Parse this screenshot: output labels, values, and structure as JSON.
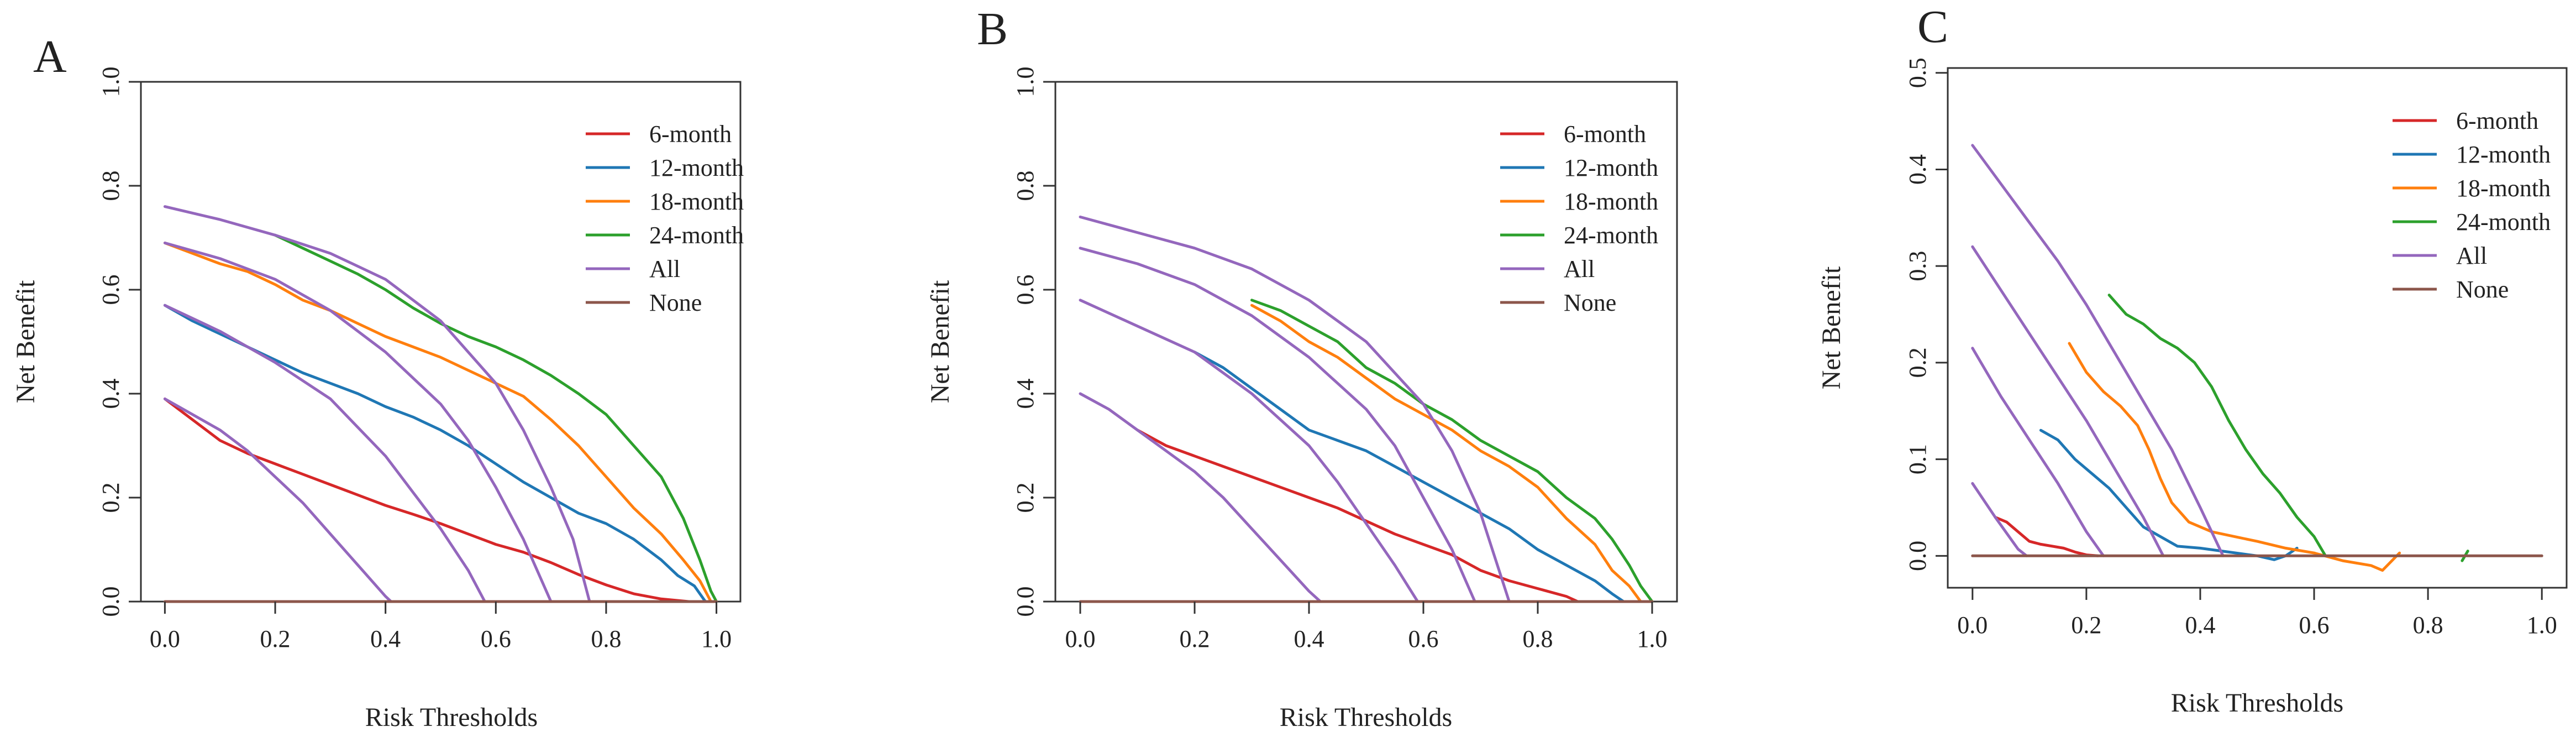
{
  "figure": {
    "panels": [
      "A",
      "B",
      "C"
    ]
  },
  "chart_data": [
    {
      "panel": "A",
      "type": "line",
      "title": "",
      "xlabel": "Risk Thresholds",
      "ylabel": "Net Benefit",
      "xlim": [
        0,
        1
      ],
      "ylim": [
        0,
        1
      ],
      "x_ticks": [
        "0.0",
        "0.2",
        "0.4",
        "0.6",
        "0.8",
        "1.0"
      ],
      "y_ticks": [
        "0.0",
        "0.2",
        "0.4",
        "0.6",
        "0.8",
        "1.0"
      ],
      "legend_position": "top-right",
      "legend": [
        "6-month",
        "12-month",
        "18-month",
        "24-month",
        "All",
        "None"
      ],
      "series": [
        {
          "name": "6-month",
          "color": "#d62728",
          "x": [
            0,
            0.05,
            0.1,
            0.15,
            0.2,
            0.25,
            0.3,
            0.35,
            0.4,
            0.45,
            0.5,
            0.55,
            0.6,
            0.65,
            0.7,
            0.75,
            0.8,
            0.85,
            0.9,
            0.95
          ],
          "y": [
            0.39,
            0.35,
            0.31,
            0.285,
            0.265,
            0.245,
            0.225,
            0.205,
            0.185,
            0.168,
            0.15,
            0.13,
            0.11,
            0.095,
            0.075,
            0.052,
            0.032,
            0.015,
            0.005,
            0.0
          ]
        },
        {
          "name": "12-month",
          "color": "#1f77b4",
          "x": [
            0,
            0.05,
            0.1,
            0.15,
            0.2,
            0.25,
            0.3,
            0.35,
            0.4,
            0.45,
            0.5,
            0.55,
            0.6,
            0.65,
            0.7,
            0.75,
            0.8,
            0.85,
            0.9,
            0.93,
            0.96,
            0.98
          ],
          "y": [
            0.57,
            0.54,
            0.515,
            0.49,
            0.465,
            0.44,
            0.42,
            0.4,
            0.375,
            0.355,
            0.33,
            0.3,
            0.265,
            0.23,
            0.2,
            0.17,
            0.15,
            0.12,
            0.08,
            0.05,
            0.03,
            0.0
          ]
        },
        {
          "name": "18-month",
          "color": "#ff7f0e",
          "x": [
            0,
            0.05,
            0.1,
            0.15,
            0.2,
            0.25,
            0.3,
            0.35,
            0.4,
            0.45,
            0.5,
            0.55,
            0.6,
            0.65,
            0.7,
            0.75,
            0.8,
            0.85,
            0.9,
            0.94,
            0.97,
            0.99
          ],
          "y": [
            0.69,
            0.67,
            0.65,
            0.635,
            0.61,
            0.58,
            0.56,
            0.535,
            0.51,
            0.49,
            0.47,
            0.445,
            0.42,
            0.395,
            0.35,
            0.3,
            0.24,
            0.18,
            0.13,
            0.08,
            0.04,
            0.0
          ]
        },
        {
          "name": "24-month",
          "color": "#2ca02c",
          "x": [
            0.2,
            0.25,
            0.3,
            0.35,
            0.4,
            0.45,
            0.5,
            0.55,
            0.6,
            0.65,
            0.7,
            0.75,
            0.8,
            0.85,
            0.9,
            0.94,
            0.97,
            0.99,
            1.0
          ],
          "y": [
            0.705,
            0.68,
            0.655,
            0.63,
            0.6,
            0.565,
            0.535,
            0.51,
            0.49,
            0.465,
            0.435,
            0.4,
            0.36,
            0.3,
            0.24,
            0.16,
            0.08,
            0.02,
            0.0
          ]
        },
        {
          "name": "All",
          "color": "#9467bd",
          "style": "multi",
          "segments": [
            {
              "x": [
                0,
                0.05,
                0.1,
                0.15,
                0.2,
                0.25,
                0.3,
                0.35,
                0.4,
                0.41
              ],
              "y": [
                0.39,
                0.36,
                0.33,
                0.29,
                0.24,
                0.19,
                0.13,
                0.07,
                0.01,
                0.0
              ]
            },
            {
              "x": [
                0,
                0.1,
                0.2,
                0.3,
                0.4,
                0.45,
                0.5,
                0.55,
                0.58
              ],
              "y": [
                0.57,
                0.52,
                0.46,
                0.39,
                0.28,
                0.21,
                0.14,
                0.06,
                0.0
              ]
            },
            {
              "x": [
                0,
                0.1,
                0.2,
                0.3,
                0.4,
                0.5,
                0.55,
                0.6,
                0.65,
                0.7
              ],
              "y": [
                0.69,
                0.66,
                0.62,
                0.56,
                0.48,
                0.38,
                0.31,
                0.22,
                0.12,
                0.0
              ]
            },
            {
              "x": [
                0,
                0.1,
                0.2,
                0.3,
                0.4,
                0.5,
                0.6,
                0.65,
                0.7,
                0.74,
                0.77
              ],
              "y": [
                0.76,
                0.735,
                0.705,
                0.67,
                0.62,
                0.54,
                0.42,
                0.33,
                0.22,
                0.12,
                0.0
              ]
            }
          ]
        },
        {
          "name": "None",
          "color": "#8c564b",
          "x": [
            0,
            1
          ],
          "y": [
            0,
            0
          ]
        }
      ]
    },
    {
      "panel": "B",
      "type": "line",
      "title": "",
      "xlabel": "Risk Thresholds",
      "ylabel": "Net Benefit",
      "xlim": [
        0,
        1
      ],
      "ylim": [
        0,
        1
      ],
      "x_ticks": [
        "0.0",
        "0.2",
        "0.4",
        "0.6",
        "0.8",
        "1.0"
      ],
      "y_ticks": [
        "0.0",
        "0.2",
        "0.4",
        "0.6",
        "0.8",
        "1.0"
      ],
      "legend_position": "top-right",
      "legend": [
        "6-month",
        "12-month",
        "18-month",
        "24-month",
        "All",
        "None"
      ],
      "series": [
        {
          "name": "6-month",
          "color": "#d62728",
          "x": [
            0.1,
            0.15,
            0.2,
            0.25,
            0.3,
            0.35,
            0.4,
            0.45,
            0.5,
            0.55,
            0.6,
            0.65,
            0.7,
            0.75,
            0.8,
            0.85,
            0.87
          ],
          "y": [
            0.33,
            0.3,
            0.28,
            0.26,
            0.24,
            0.22,
            0.2,
            0.18,
            0.155,
            0.13,
            0.11,
            0.09,
            0.06,
            0.04,
            0.025,
            0.01,
            0.0
          ]
        },
        {
          "name": "12-month",
          "color": "#1f77b4",
          "x": [
            0.2,
            0.25,
            0.3,
            0.35,
            0.4,
            0.45,
            0.5,
            0.55,
            0.6,
            0.65,
            0.7,
            0.75,
            0.8,
            0.85,
            0.9,
            0.93,
            0.95
          ],
          "y": [
            0.48,
            0.45,
            0.41,
            0.37,
            0.33,
            0.31,
            0.29,
            0.26,
            0.23,
            0.2,
            0.17,
            0.14,
            0.1,
            0.07,
            0.04,
            0.015,
            0.0
          ]
        },
        {
          "name": "18-month",
          "color": "#ff7f0e",
          "x": [
            0.3,
            0.35,
            0.4,
            0.45,
            0.5,
            0.55,
            0.6,
            0.65,
            0.7,
            0.75,
            0.8,
            0.85,
            0.9,
            0.93,
            0.96,
            0.98
          ],
          "y": [
            0.57,
            0.54,
            0.5,
            0.47,
            0.43,
            0.39,
            0.36,
            0.33,
            0.29,
            0.26,
            0.22,
            0.16,
            0.11,
            0.06,
            0.03,
            0.0
          ]
        },
        {
          "name": "24-month",
          "color": "#2ca02c",
          "x": [
            0.3,
            0.35,
            0.4,
            0.45,
            0.5,
            0.55,
            0.6,
            0.65,
            0.7,
            0.75,
            0.8,
            0.85,
            0.9,
            0.93,
            0.96,
            0.98,
            1.0
          ],
          "y": [
            0.58,
            0.56,
            0.53,
            0.5,
            0.45,
            0.42,
            0.38,
            0.35,
            0.31,
            0.28,
            0.25,
            0.2,
            0.16,
            0.12,
            0.07,
            0.03,
            0.0
          ]
        },
        {
          "name": "All",
          "color": "#9467bd",
          "style": "multi",
          "segments": [
            {
              "x": [
                0,
                0.05,
                0.1,
                0.15,
                0.2,
                0.25,
                0.3,
                0.35,
                0.4,
                0.42
              ],
              "y": [
                0.4,
                0.37,
                0.33,
                0.29,
                0.25,
                0.2,
                0.14,
                0.08,
                0.02,
                0.0
              ]
            },
            {
              "x": [
                0,
                0.1,
                0.2,
                0.3,
                0.4,
                0.45,
                0.5,
                0.55,
                0.59
              ],
              "y": [
                0.58,
                0.53,
                0.48,
                0.4,
                0.3,
                0.23,
                0.15,
                0.07,
                0.0
              ]
            },
            {
              "x": [
                0,
                0.1,
                0.2,
                0.3,
                0.4,
                0.5,
                0.55,
                0.6,
                0.65,
                0.69
              ],
              "y": [
                0.68,
                0.65,
                0.61,
                0.55,
                0.47,
                0.37,
                0.3,
                0.2,
                0.1,
                0.0
              ]
            },
            {
              "x": [
                0,
                0.1,
                0.2,
                0.3,
                0.4,
                0.5,
                0.6,
                0.65,
                0.7,
                0.75
              ],
              "y": [
                0.74,
                0.71,
                0.68,
                0.64,
                0.58,
                0.5,
                0.38,
                0.29,
                0.17,
                0.0
              ]
            }
          ]
        },
        {
          "name": "None",
          "color": "#8c564b",
          "x": [
            0,
            1
          ],
          "y": [
            0,
            0
          ]
        }
      ]
    },
    {
      "panel": "C",
      "type": "line",
      "title": "",
      "xlabel": "Risk Thresholds",
      "ylabel": "Net Benefit",
      "xlim": [
        0,
        1
      ],
      "ylim": [
        0,
        0.5
      ],
      "x_ticks": [
        "0.0",
        "0.2",
        "0.4",
        "0.6",
        "0.8",
        "1.0"
      ],
      "y_ticks": [
        "0.0",
        "0.1",
        "0.2",
        "0.3",
        "0.4",
        "0.5"
      ],
      "legend_position": "top-right",
      "legend": [
        "6-month",
        "12-month",
        "18-month",
        "24-month",
        "All",
        "None"
      ],
      "series": [
        {
          "name": "6-month",
          "color": "#d62728",
          "x": [
            0.04,
            0.06,
            0.08,
            0.1,
            0.12,
            0.14,
            0.16,
            0.18,
            0.2,
            0.22
          ],
          "y": [
            0.04,
            0.035,
            0.025,
            0.015,
            0.012,
            0.01,
            0.008,
            0.004,
            0.001,
            0.0
          ]
        },
        {
          "name": "12-month",
          "color": "#1f77b4",
          "x": [
            0.12,
            0.15,
            0.18,
            0.21,
            0.24,
            0.27,
            0.3,
            0.33,
            0.36,
            0.4,
            0.45,
            0.5,
            0.53,
            0.55,
            0.57
          ],
          "y": [
            0.13,
            0.12,
            0.1,
            0.085,
            0.07,
            0.05,
            0.03,
            0.02,
            0.01,
            0.008,
            0.004,
            0.0,
            -0.004,
            0.0,
            0.008
          ]
        },
        {
          "name": "18-month",
          "color": "#ff7f0e",
          "x": [
            0.17,
            0.2,
            0.23,
            0.26,
            0.29,
            0.31,
            0.33,
            0.35,
            0.38,
            0.42,
            0.46,
            0.5,
            0.55,
            0.6,
            0.65,
            0.7,
            0.72,
            0.75
          ],
          "y": [
            0.22,
            0.19,
            0.17,
            0.155,
            0.135,
            0.11,
            0.08,
            0.055,
            0.035,
            0.025,
            0.02,
            0.015,
            0.008,
            0.003,
            -0.005,
            -0.01,
            -0.015,
            0.003
          ]
        },
        {
          "name": "24-month",
          "color": "#2ca02c",
          "x": [
            0.24,
            0.27,
            0.3,
            0.33,
            0.36,
            0.39,
            0.42,
            0.45,
            0.48,
            0.51,
            0.54,
            0.57,
            0.6,
            0.62
          ],
          "y": [
            0.27,
            0.25,
            0.24,
            0.225,
            0.215,
            0.2,
            0.175,
            0.14,
            0.11,
            0.085,
            0.065,
            0.04,
            0.02,
            0.0
          ]
        },
        {
          "name": "24-month-tail",
          "color": "#2ca02c",
          "x": [
            0.86,
            0.87
          ],
          "y": [
            -0.005,
            0.005
          ]
        },
        {
          "name": "All",
          "color": "#9467bd",
          "style": "multi",
          "segments": [
            {
              "x": [
                0,
                0.04,
                0.08,
                0.095
              ],
              "y": [
                0.075,
                0.04,
                0.007,
                0.0
              ]
            },
            {
              "x": [
                0,
                0.05,
                0.1,
                0.15,
                0.2,
                0.23
              ],
              "y": [
                0.215,
                0.165,
                0.12,
                0.075,
                0.025,
                0.0
              ]
            },
            {
              "x": [
                0,
                0.05,
                0.1,
                0.15,
                0.2,
                0.25,
                0.3,
                0.335
              ],
              "y": [
                0.32,
                0.275,
                0.23,
                0.185,
                0.14,
                0.09,
                0.04,
                0.0
              ]
            },
            {
              "x": [
                0,
                0.05,
                0.1,
                0.15,
                0.2,
                0.25,
                0.3,
                0.35,
                0.4,
                0.44
              ],
              "y": [
                0.425,
                0.385,
                0.345,
                0.305,
                0.26,
                0.21,
                0.16,
                0.11,
                0.05,
                0.0
              ]
            }
          ]
        },
        {
          "name": "None",
          "color": "#8c564b",
          "x": [
            0,
            1
          ],
          "y": [
            0,
            0
          ]
        }
      ]
    }
  ]
}
